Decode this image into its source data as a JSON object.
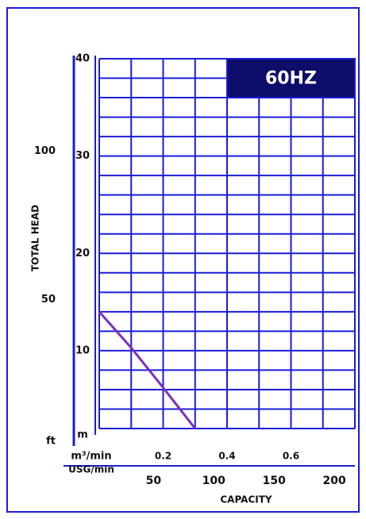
{
  "chart_data": {
    "type": "line",
    "badge": "60HZ",
    "y_title": "TOTAL HEAD",
    "x_title": "CAPACITY",
    "x_unit": "m³/min",
    "x2_unit": "USG/min",
    "color": "#1c1cd6",
    "badge_color": "#0d0d6b",
    "xlim": [
      0,
      0.8
    ],
    "xticks": [
      0.2,
      0.4,
      0.6
    ],
    "xgrid": [
      0,
      0.1,
      0.2,
      0.3,
      0.4,
      0.5,
      0.6,
      0.7,
      0.8
    ],
    "x2lim": [
      5,
      217
    ],
    "x2ticks": [
      50,
      100,
      150,
      200
    ],
    "ylim": [
      2,
      40
    ],
    "yticks": [
      40,
      30,
      20,
      10,
      {
        "value": 2,
        "label": "m"
      }
    ],
    "ygrid": [
      2,
      4,
      6,
      8,
      10,
      12,
      14,
      16,
      18,
      20,
      22,
      24,
      26,
      28,
      30,
      32,
      34,
      36,
      38,
      40
    ],
    "y2lim": [
      6.6,
      131.2
    ],
    "y2ticks": [
      100,
      50,
      {
        "value": 6.6,
        "label": "ft"
      }
    ],
    "x": [
      0,
      0.1,
      0.2,
      0.3
    ],
    "series": [
      {
        "color": "#7a2fc0",
        "values": [
          14,
          10.3,
          6.2,
          2
        ]
      }
    ]
  }
}
